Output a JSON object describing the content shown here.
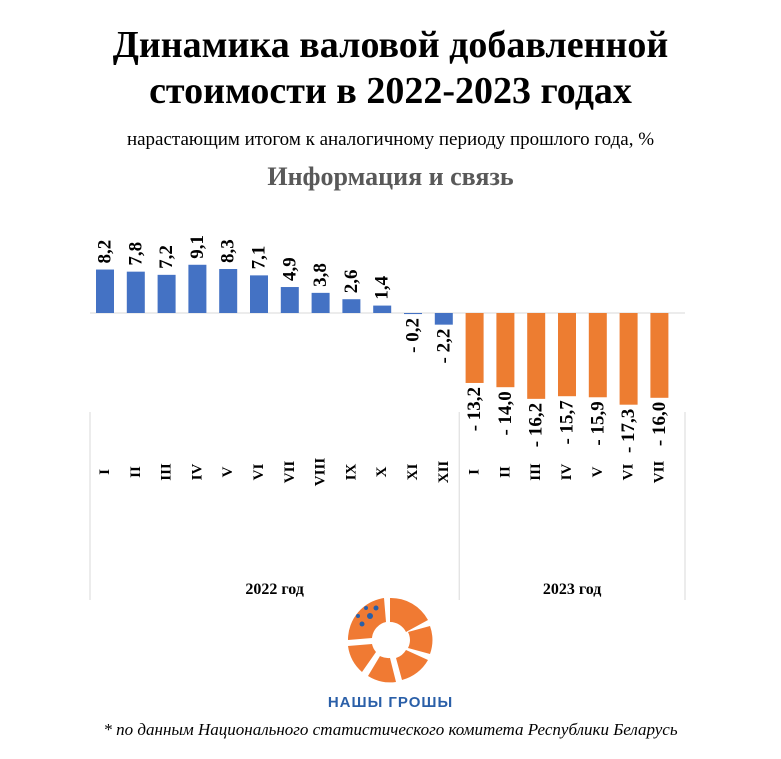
{
  "title_line1": "Динамика валовой добавленной",
  "title_line2": "стоимости в 2022-2023 годах",
  "subtitle": "нарастающим итогом к аналогичному периоду прошлого года, %",
  "footnote": "* по данным Национального статистического комитета Республики Беларусь",
  "logo_text": "НАШЫ ГРОШЫ",
  "chart_data": {
    "type": "bar",
    "title": "Информация и связь",
    "groups": [
      "2022 год",
      "2023 год"
    ],
    "categories": [
      "I",
      "II",
      "III",
      "IV",
      "V",
      "VI",
      "VII",
      "VIII",
      "IX",
      "X",
      "XI",
      "XII",
      "I",
      "II",
      "III",
      "IV",
      "V",
      "VI",
      "VII"
    ],
    "values": [
      8.2,
      7.8,
      7.2,
      9.1,
      8.3,
      7.1,
      4.9,
      3.8,
      2.6,
      1.4,
      -0.2,
      -2.2,
      -13.2,
      -14.0,
      -16.2,
      -15.7,
      -15.9,
      -17.3,
      -16.0
    ],
    "value_labels": [
      "8,2",
      "7,8",
      "7,2",
      "9,1",
      "8,3",
      "7,1",
      "4,9",
      "3,8",
      "2,6",
      "1,4",
      "- 0,2",
      "- 2,2",
      "- 13,2",
      "- 14,0",
      "- 16,2",
      "- 15,7",
      "- 15,9",
      "- 17,3",
      "- 16,0"
    ],
    "group_index": [
      0,
      0,
      0,
      0,
      0,
      0,
      0,
      0,
      0,
      0,
      0,
      0,
      1,
      1,
      1,
      1,
      1,
      1,
      1
    ],
    "colors": [
      "#4472c4",
      "#ed7d31"
    ],
    "grid": false
  }
}
